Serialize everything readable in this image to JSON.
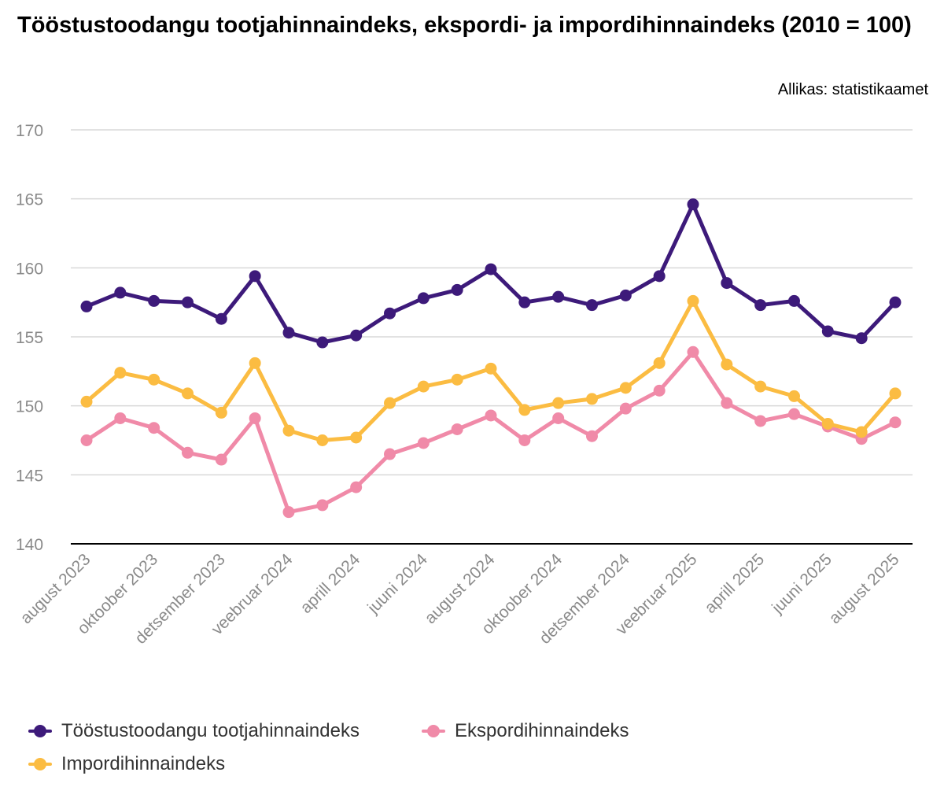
{
  "header": {
    "title": "Tööstustoodangu tootjahinnaindeks, ekspordi- ja impordihinnaindeks (2010 = 100)",
    "source": "Allikas: statistikaamet"
  },
  "chart_data": {
    "type": "line",
    "title": "Tööstustoodangu tootjahinnaindeks, ekspordi- ja impordihinnaindeks (2010 = 100)",
    "xlabel": "",
    "ylabel": "",
    "ylim": [
      140,
      170
    ],
    "yticks": [
      140,
      145,
      150,
      155,
      160,
      165,
      170
    ],
    "grid": true,
    "legend_position": "bottom",
    "categories": [
      "august 2023",
      "september 2023",
      "oktoober 2023",
      "november 2023",
      "detsember 2023",
      "jaanuar 2024",
      "veebruar 2024",
      "märts 2024",
      "aprill 2024",
      "mai 2024",
      "juuni 2024",
      "juuli 2024",
      "august 2024",
      "september 2024",
      "oktoober 2024",
      "november 2024",
      "detsember 2024",
      "jaanuar 2025",
      "veebruar 2025",
      "märts 2025",
      "aprill 2025",
      "mai 2025",
      "juuni 2025",
      "juuli 2025",
      "august 2025"
    ],
    "x_tick_labels": [
      "august 2023",
      "",
      "oktoober 2023",
      "",
      "detsember 2023",
      "",
      "veebruar 2024",
      "",
      "aprill 2024",
      "",
      "juuni 2024",
      "",
      "august 2024",
      "",
      "oktoober 2024",
      "",
      "detsember 2024",
      "",
      "veebruar 2025",
      "",
      "aprill 2025",
      "",
      "juuni 2025",
      "",
      "august 2025"
    ],
    "series": [
      {
        "name": "Tööstustoodangu tootjahinnaindeks",
        "color": "#3d1a7a",
        "values": [
          157.2,
          158.2,
          157.6,
          157.5,
          156.3,
          159.4,
          155.3,
          154.6,
          155.1,
          156.7,
          157.8,
          158.4,
          159.9,
          157.5,
          157.9,
          157.3,
          158.0,
          159.4,
          164.6,
          158.9,
          157.3,
          157.6,
          155.4,
          154.9,
          157.5
        ]
      },
      {
        "name": "Ekspordihinnaindeks",
        "color": "#f08aa8",
        "values": [
          147.5,
          149.1,
          148.4,
          146.6,
          146.1,
          149.1,
          142.3,
          142.8,
          144.1,
          146.5,
          147.3,
          148.3,
          149.3,
          147.5,
          149.1,
          147.8,
          149.8,
          151.1,
          153.9,
          150.2,
          148.9,
          149.4,
          148.5,
          147.6,
          148.8
        ]
      },
      {
        "name": "Impordihinnaindeks",
        "color": "#fbbc42",
        "values": [
          150.3,
          152.4,
          151.9,
          150.9,
          149.5,
          153.1,
          148.2,
          147.5,
          147.7,
          150.2,
          151.4,
          151.9,
          152.7,
          149.7,
          150.2,
          150.5,
          151.3,
          153.1,
          157.6,
          153.0,
          151.4,
          150.7,
          148.7,
          148.1,
          150.9
        ]
      }
    ],
    "draw_order": [
      1,
      2,
      0
    ],
    "legend_order": [
      0,
      1,
      2
    ]
  }
}
